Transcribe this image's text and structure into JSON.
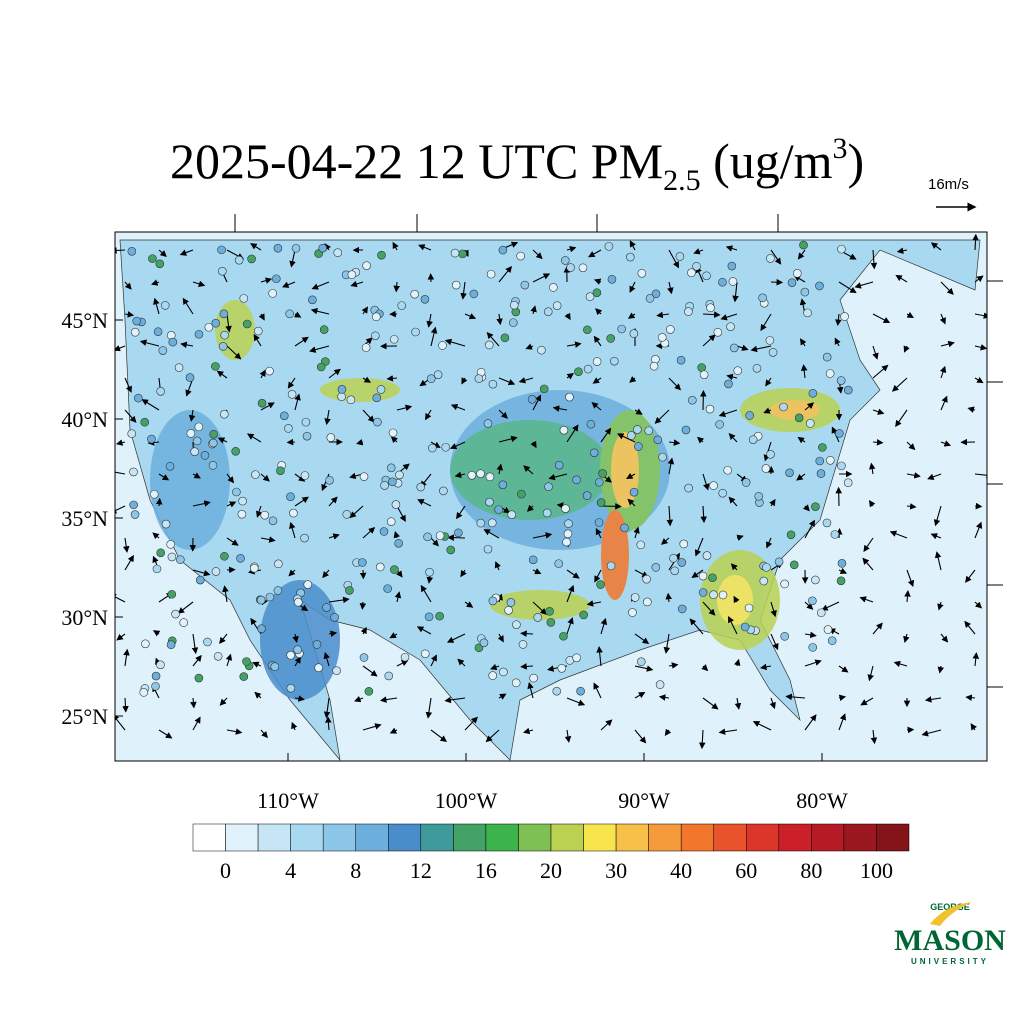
{
  "title": {
    "main": "2025-04-22 12 UTC PM",
    "subscript": "2.5",
    "unit": " (ug/m",
    "superscript": "3",
    "close": ")"
  },
  "wind_reference": "16m/s",
  "map": {
    "lat_ticks": [
      {
        "value": 45,
        "label": "45°N"
      },
      {
        "value": 40,
        "label": "40°N"
      },
      {
        "value": 35,
        "label": "35°N"
      },
      {
        "value": 30,
        "label": "30°N"
      },
      {
        "value": 25,
        "label": "25°N"
      }
    ],
    "lon_ticks": [
      {
        "value": -110,
        "label": "110°W"
      },
      {
        "value": -100,
        "label": "100°W"
      },
      {
        "value": -90,
        "label": "90°W"
      },
      {
        "value": -80,
        "label": "80°W"
      }
    ]
  },
  "colorbar": {
    "colors": [
      "#ffffff",
      "#e0f2fb",
      "#c6e6f6",
      "#a9d9f1",
      "#8cc7ea",
      "#6cafdd",
      "#4a8dcb",
      "#3e9a9b",
      "#45a267",
      "#3db34b",
      "#7ec052",
      "#bad152",
      "#f8e44d",
      "#f8c049",
      "#f59b3b",
      "#f2772c",
      "#e8532b",
      "#dc352a",
      "#cb1f2a",
      "#b51b25",
      "#9c1820",
      "#85141a"
    ],
    "labels": [
      0,
      4,
      8,
      12,
      16,
      20,
      30,
      40,
      60,
      80,
      100
    ]
  },
  "logo": {
    "top": "GEORGE",
    "name": "MASON",
    "bottom": "UNIVERSITY"
  }
}
